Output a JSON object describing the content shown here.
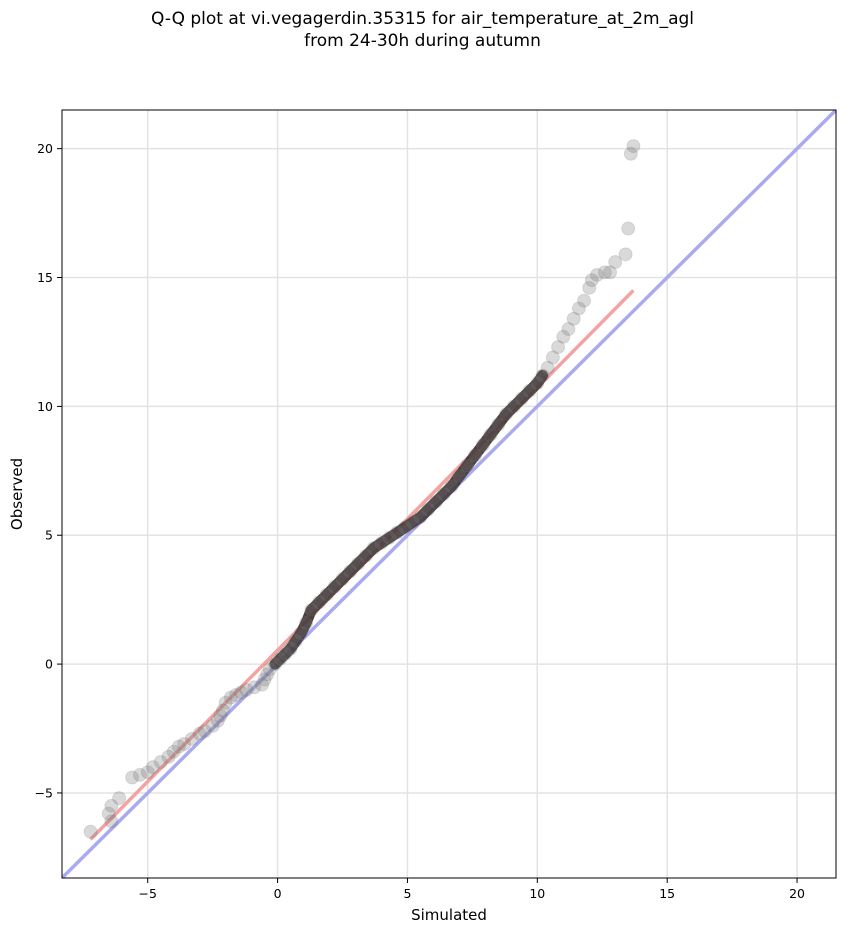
{
  "title": {
    "line1": "Q-Q plot at vi.vegagerdin.35315 for air_temperature_at_2m_agl",
    "line2": "from 24-30h during autumn"
  },
  "chart_data": {
    "type": "scatter",
    "xlabel": "Simulated",
    "ylabel": "Observed",
    "xlim": [
      -8.3,
      21.5
    ],
    "ylim": [
      -8.3,
      21.5
    ],
    "xticks": [
      -5,
      0,
      5,
      10,
      15,
      20
    ],
    "yticks": [
      -5,
      0,
      5,
      10,
      15,
      20
    ],
    "xtick_labels": [
      "−5",
      "0",
      "5",
      "10",
      "15",
      "20"
    ],
    "ytick_labels": [
      "−5",
      "0",
      "5",
      "10",
      "15",
      "20"
    ],
    "grid": true,
    "colors": {
      "identity_line": "#aaaaee",
      "fit_line": "#f4a3a3",
      "points": "#777777"
    },
    "identity_line": {
      "x": [
        -8.3,
        21.5
      ],
      "y": [
        -8.3,
        21.5
      ]
    },
    "fit_line": {
      "x": [
        -7.2,
        13.7
      ],
      "y": [
        -6.8,
        14.5
      ]
    },
    "quantile_points": [
      [
        -7.2,
        -6.5
      ],
      [
        -6.4,
        -6.1
      ],
      [
        -6.5,
        -5.8
      ],
      [
        -6.4,
        -5.5
      ],
      [
        -6.1,
        -5.2
      ],
      [
        -5.6,
        -4.4
      ],
      [
        -5.3,
        -4.3
      ],
      [
        -5.0,
        -4.2
      ],
      [
        -4.8,
        -4.0
      ],
      [
        -4.5,
        -3.8
      ],
      [
        -4.2,
        -3.6
      ],
      [
        -4.0,
        -3.4
      ],
      [
        -3.8,
        -3.2
      ],
      [
        -3.6,
        -3.1
      ],
      [
        -3.3,
        -2.9
      ],
      [
        -3.0,
        -2.7
      ],
      [
        -2.8,
        -2.6
      ],
      [
        -2.5,
        -2.4
      ],
      [
        -2.3,
        -2.2
      ],
      [
        -2.2,
        -2.0
      ],
      [
        -2.1,
        -1.8
      ],
      [
        -2.0,
        -1.5
      ],
      [
        -1.8,
        -1.3
      ],
      [
        -1.6,
        -1.2
      ],
      [
        -1.4,
        -1.1
      ],
      [
        -1.2,
        -1.0
      ],
      [
        -0.9,
        -0.9
      ],
      [
        -0.6,
        -0.8
      ],
      [
        -0.5,
        -0.6
      ],
      [
        -0.4,
        -0.4
      ],
      [
        -0.3,
        -0.2
      ],
      [
        -0.1,
        0.0
      ],
      [
        0.1,
        0.2
      ],
      [
        0.3,
        0.4
      ],
      [
        0.5,
        0.6
      ],
      [
        0.7,
        0.9
      ],
      [
        0.9,
        1.2
      ],
      [
        1.1,
        1.6
      ],
      [
        1.3,
        2.1
      ],
      [
        1.6,
        2.4
      ],
      [
        1.9,
        2.7
      ],
      [
        2.2,
        3.0
      ],
      [
        2.5,
        3.3
      ],
      [
        2.8,
        3.6
      ],
      [
        3.1,
        3.9
      ],
      [
        3.4,
        4.2
      ],
      [
        3.7,
        4.5
      ],
      [
        4.0,
        4.7
      ],
      [
        4.3,
        4.9
      ],
      [
        4.6,
        5.1
      ],
      [
        4.9,
        5.3
      ],
      [
        5.2,
        5.5
      ],
      [
        5.5,
        5.7
      ],
      [
        5.8,
        6.0
      ],
      [
        6.1,
        6.3
      ],
      [
        6.4,
        6.6
      ],
      [
        6.7,
        6.9
      ],
      [
        7.0,
        7.3
      ],
      [
        7.3,
        7.7
      ],
      [
        7.6,
        8.1
      ],
      [
        7.9,
        8.5
      ],
      [
        8.2,
        8.9
      ],
      [
        8.5,
        9.3
      ],
      [
        8.8,
        9.7
      ],
      [
        9.1,
        10.0
      ],
      [
        9.4,
        10.3
      ],
      [
        9.7,
        10.6
      ],
      [
        10.0,
        10.9
      ],
      [
        10.2,
        11.2
      ],
      [
        10.4,
        11.5
      ],
      [
        10.6,
        11.9
      ],
      [
        10.8,
        12.3
      ],
      [
        11.0,
        12.7
      ],
      [
        11.2,
        13.0
      ],
      [
        11.4,
        13.4
      ],
      [
        11.6,
        13.8
      ],
      [
        11.8,
        14.1
      ],
      [
        12.0,
        14.6
      ],
      [
        12.1,
        14.9
      ],
      [
        12.3,
        15.1
      ],
      [
        12.6,
        15.2
      ],
      [
        12.8,
        15.2
      ],
      [
        13.0,
        15.6
      ],
      [
        13.4,
        15.9
      ],
      [
        13.5,
        16.9
      ],
      [
        13.6,
        19.8
      ],
      [
        13.7,
        20.1
      ]
    ]
  }
}
